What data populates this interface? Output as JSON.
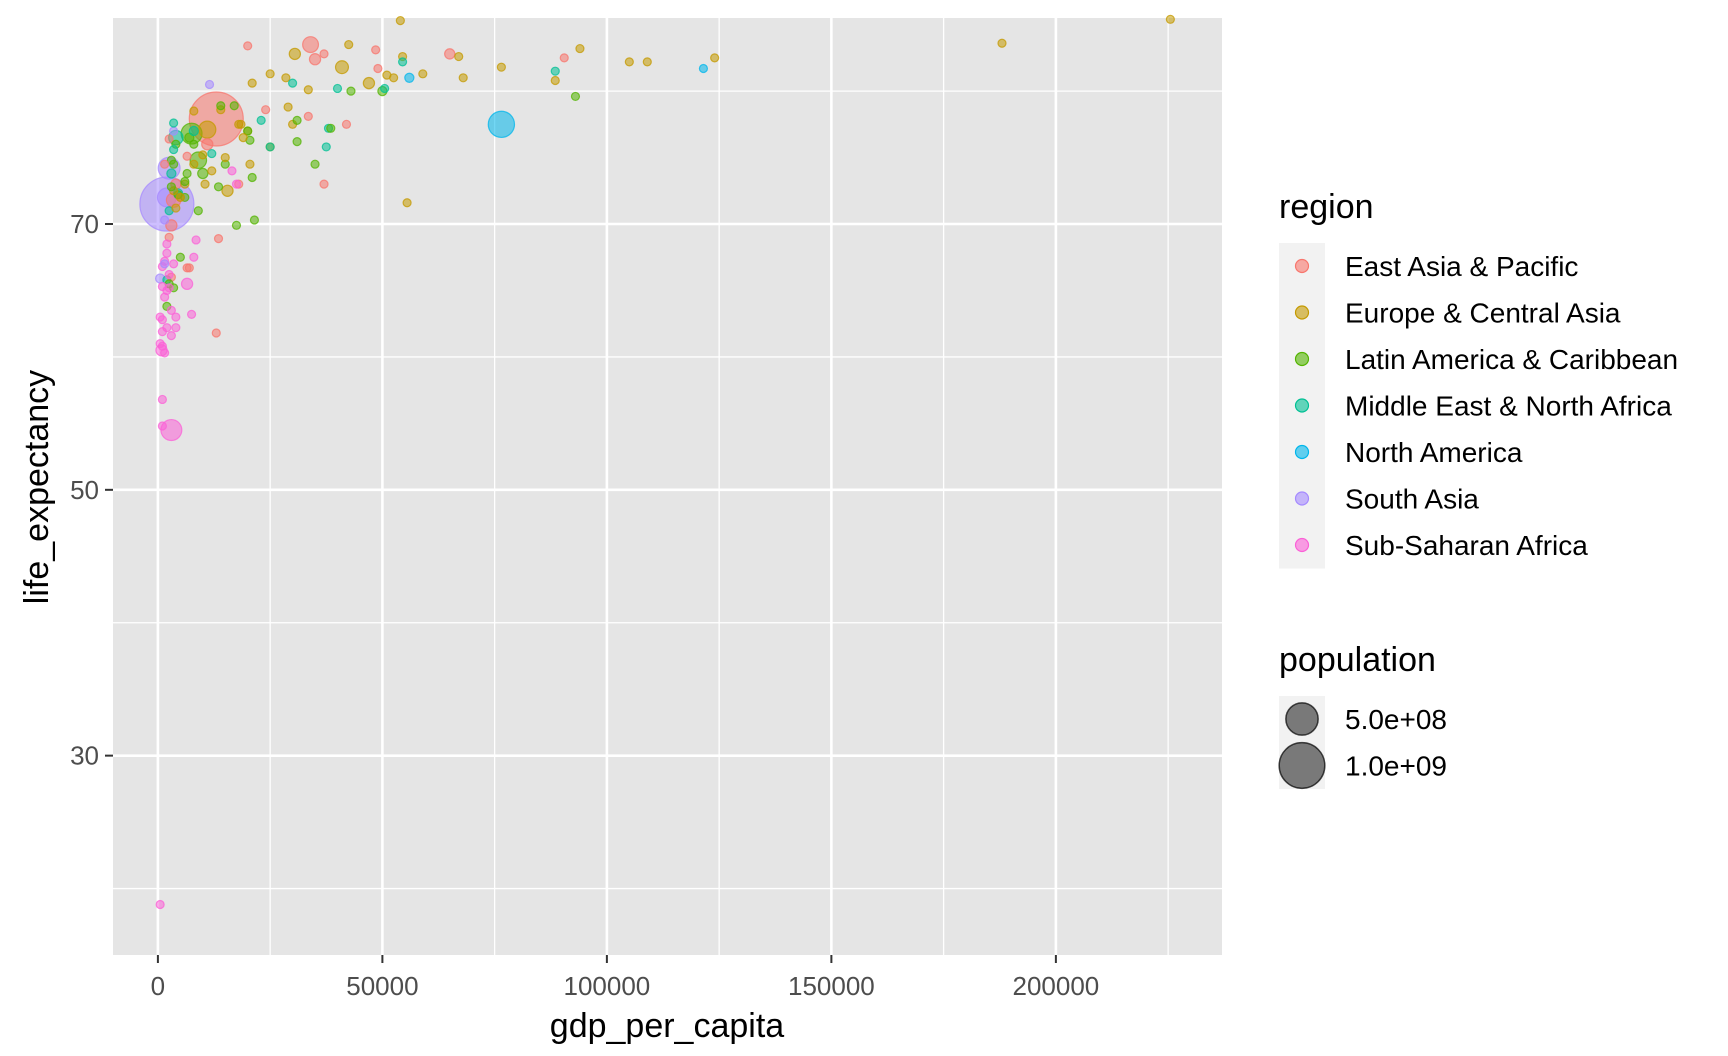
{
  "chart_data": {
    "type": "scatter",
    "xlabel": "gdp_per_capita",
    "ylabel": "life_expectancy",
    "xlim": [
      -10000,
      237000
    ],
    "ylim": [
      15,
      85.5
    ],
    "xticks": [
      0,
      50000,
      100000,
      150000,
      200000
    ],
    "xtick_labels": [
      "0",
      "50000",
      "100000",
      "150000",
      "200000"
    ],
    "yticks": [
      30,
      50,
      70
    ],
    "ytick_labels": [
      "30",
      "50",
      "70"
    ],
    "grid": true,
    "background": "#e5e5e5",
    "legend_position": "right",
    "color_legend": {
      "title": "region",
      "entries": [
        {
          "label": "East Asia & Pacific",
          "color": "#F8766D"
        },
        {
          "label": "Europe & Central Asia",
          "color": "#C49A00"
        },
        {
          "label": "Latin America & Caribbean",
          "color": "#53B400"
        },
        {
          "label": "Middle East & North Africa",
          "color": "#00C094"
        },
        {
          "label": "North America",
          "color": "#00B6EB"
        },
        {
          "label": "South Asia",
          "color": "#A58AFF"
        },
        {
          "label": "Sub-Saharan Africa",
          "color": "#FB61D7"
        }
      ]
    },
    "size_legend": {
      "title": "population",
      "entries": [
        {
          "label": "5.0e+08",
          "value": 500000000
        },
        {
          "label": "1.0e+09",
          "value": 1000000000
        }
      ]
    },
    "series": [
      {
        "name": "East Asia & Pacific",
        "points": [
          [
            20000,
            83.4,
            25000000
          ],
          [
            34000,
            83.5,
            120000000
          ],
          [
            35000,
            82.4,
            60000000
          ],
          [
            37000,
            82.8,
            30000000
          ],
          [
            48500,
            83.1,
            20000000
          ],
          [
            49000,
            81.7,
            10000000
          ],
          [
            65000,
            82.8,
            50000000
          ],
          [
            90500,
            82.5,
            20000000
          ],
          [
            24000,
            78.6,
            10000000
          ],
          [
            33500,
            78.1,
            10000000
          ],
          [
            42000,
            77.5,
            10000000
          ],
          [
            13000,
            77.9,
            1400000000
          ],
          [
            11000,
            76.0,
            60000000
          ],
          [
            6500,
            75.1,
            30000000
          ],
          [
            3500,
            71.8,
            100000000
          ],
          [
            4000,
            73.0,
            50000000
          ],
          [
            5000,
            72.0,
            30000000
          ],
          [
            3000,
            69.9,
            60000000
          ],
          [
            2500,
            69.0,
            10000000
          ],
          [
            6500,
            66.7,
            10000000
          ],
          [
            13500,
            68.9,
            5000000
          ],
          [
            37000,
            73.0,
            5000000
          ],
          [
            18000,
            73.0,
            5000000
          ],
          [
            13000,
            61.8,
            5000000
          ],
          [
            3000,
            66.0,
            10000000
          ],
          [
            7000,
            66.7,
            5000000
          ],
          [
            1500,
            74.5,
            5000000
          ],
          [
            2500,
            76.4,
            10000000
          ]
        ]
      },
      {
        "name": "Europe & Central Asia",
        "points": [
          [
            54000,
            85.3,
            5000000
          ],
          [
            225500,
            85.4,
            5000000
          ],
          [
            188000,
            83.6,
            5000000
          ],
          [
            42500,
            83.5,
            5000000
          ],
          [
            30500,
            82.8,
            60000000
          ],
          [
            54500,
            82.6,
            10000000
          ],
          [
            67000,
            82.6,
            5000000
          ],
          [
            94000,
            83.2,
            10000000
          ],
          [
            105000,
            82.2,
            10000000
          ],
          [
            109000,
            82.2,
            10000000
          ],
          [
            124000,
            82.5,
            5000000
          ],
          [
            25000,
            81.3,
            20000000
          ],
          [
            28500,
            81.0,
            10000000
          ],
          [
            41000,
            81.8,
            80000000
          ],
          [
            47000,
            80.6,
            60000000
          ],
          [
            51000,
            81.2,
            10000000
          ],
          [
            52500,
            81.0,
            10000000
          ],
          [
            59000,
            81.3,
            10000000
          ],
          [
            68000,
            81.0,
            10000000
          ],
          [
            76500,
            81.8,
            5000000
          ],
          [
            88500,
            80.8,
            5000000
          ],
          [
            33500,
            80.1,
            10000000
          ],
          [
            21000,
            80.6,
            10000000
          ],
          [
            29000,
            78.8,
            10000000
          ],
          [
            8000,
            78.5,
            10000000
          ],
          [
            30000,
            77.5,
            5000000
          ],
          [
            18000,
            77.5,
            10000000
          ],
          [
            20000,
            77.0,
            10000000
          ],
          [
            19000,
            76.5,
            5000000
          ],
          [
            25000,
            75.8,
            5000000
          ],
          [
            20500,
            74.5,
            5000000
          ],
          [
            10000,
            75.2,
            5000000
          ],
          [
            15000,
            75.0,
            5000000
          ],
          [
            8000,
            74.5,
            5000000
          ],
          [
            12000,
            74.0,
            5000000
          ],
          [
            15500,
            72.5,
            60000000
          ],
          [
            10500,
            73.0,
            5000000
          ],
          [
            6000,
            73.0,
            10000000
          ],
          [
            55500,
            71.6,
            5000000
          ],
          [
            4000,
            71.2,
            10000000
          ],
          [
            5000,
            72.0,
            5000000
          ],
          [
            3500,
            72.5,
            5000000
          ],
          [
            11000,
            77.1,
            140000000
          ],
          [
            14000,
            78.6,
            10000000
          ],
          [
            18500,
            77.5,
            10000000
          ]
        ]
      },
      {
        "name": "Latin America & Caribbean",
        "points": [
          [
            14000,
            78.9,
            5000000
          ],
          [
            17000,
            78.9,
            5000000
          ],
          [
            20000,
            77.0,
            10000000
          ],
          [
            20500,
            76.3,
            10000000
          ],
          [
            31000,
            77.8,
            5000000
          ],
          [
            38500,
            77.2,
            10000000
          ],
          [
            43000,
            80.0,
            5000000
          ],
          [
            50000,
            80.0,
            40000000
          ],
          [
            93000,
            79.6,
            5000000
          ],
          [
            35000,
            74.5,
            5000000
          ],
          [
            31000,
            76.2,
            5000000
          ],
          [
            21000,
            73.5,
            10000000
          ],
          [
            13500,
            72.8,
            10000000
          ],
          [
            15000,
            74.5,
            10000000
          ],
          [
            9000,
            74.8,
            130000000
          ],
          [
            7000,
            76.5,
            40000000
          ],
          [
            8000,
            76.0,
            30000000
          ],
          [
            10000,
            73.8,
            50000000
          ],
          [
            6000,
            73.2,
            10000000
          ],
          [
            4500,
            72.2,
            10000000
          ],
          [
            9000,
            71.0,
            10000000
          ],
          [
            6000,
            72.0,
            20000000
          ],
          [
            3000,
            72.8,
            5000000
          ],
          [
            17500,
            69.9,
            10000000
          ],
          [
            21500,
            70.3,
            10000000
          ],
          [
            3500,
            74.5,
            20000000
          ],
          [
            5000,
            67.5,
            10000000
          ],
          [
            2500,
            65.5,
            10000000
          ],
          [
            2000,
            63.8,
            5000000
          ],
          [
            3500,
            65.2,
            10000000
          ],
          [
            4000,
            76.0,
            10000000
          ],
          [
            6500,
            73.8,
            10000000
          ],
          [
            7500,
            76.8,
            210000000
          ],
          [
            3000,
            74.8,
            10000000
          ]
        ]
      },
      {
        "name": "Middle East & North Africa",
        "points": [
          [
            54500,
            82.2,
            10000000
          ],
          [
            88500,
            81.5,
            5000000
          ],
          [
            30000,
            80.6,
            5000000
          ],
          [
            40000,
            80.2,
            5000000
          ],
          [
            50500,
            80.2,
            10000000
          ],
          [
            23000,
            77.8,
            5000000
          ],
          [
            38000,
            77.2,
            20000000
          ],
          [
            37500,
            75.8,
            5000000
          ],
          [
            25000,
            75.8,
            5000000
          ],
          [
            3500,
            77.6,
            5000000
          ],
          [
            4000,
            76.5,
            100000000
          ],
          [
            3500,
            75.6,
            10000000
          ],
          [
            4500,
            72.3,
            40000000
          ],
          [
            3000,
            73.8,
            40000000
          ],
          [
            2500,
            71.0,
            30000000
          ],
          [
            2000,
            65.8,
            30000000
          ],
          [
            8000,
            77.0,
            40000000
          ],
          [
            12000,
            75.3,
            10000000
          ]
        ]
      },
      {
        "name": "North America",
        "points": [
          [
            76500,
            77.5,
            330000000
          ],
          [
            56000,
            81.0,
            40000000
          ],
          [
            121500,
            81.7,
            5000000
          ]
        ]
      },
      {
        "name": "South Asia",
        "points": [
          [
            11500,
            80.5,
            5000000
          ],
          [
            3500,
            77.0,
            20000000
          ],
          [
            2500,
            74.2,
            230000000
          ],
          [
            2000,
            71.5,
            1400000000
          ],
          [
            1500,
            70.3,
            30000000
          ],
          [
            2000,
            72.0,
            170000000
          ],
          [
            500,
            65.9,
            40000000
          ],
          [
            1500,
            67.0,
            10000000
          ]
        ]
      },
      {
        "name": "Sub-Saharan Africa",
        "points": [
          [
            16500,
            74.0,
            5000000
          ],
          [
            17500,
            73.0,
            5000000
          ],
          [
            8500,
            68.8,
            5000000
          ],
          [
            8000,
            67.5,
            5000000
          ],
          [
            6500,
            65.5,
            60000000
          ],
          [
            7500,
            63.2,
            5000000
          ],
          [
            4000,
            63.0,
            5000000
          ],
          [
            2000,
            67.8,
            30000000
          ],
          [
            1500,
            67.2,
            20000000
          ],
          [
            1000,
            66.8,
            30000000
          ],
          [
            2000,
            68.5,
            10000000
          ],
          [
            3500,
            67.0,
            10000000
          ],
          [
            1000,
            65.3,
            10000000
          ],
          [
            2000,
            65.0,
            30000000
          ],
          [
            2500,
            65.2,
            10000000
          ],
          [
            1500,
            64.5,
            10000000
          ],
          [
            500,
            63.0,
            10000000
          ],
          [
            1000,
            62.8,
            30000000
          ],
          [
            2000,
            62.2,
            30000000
          ],
          [
            1000,
            61.9,
            20000000
          ],
          [
            3000,
            61.6,
            10000000
          ],
          [
            500,
            61.0,
            20000000
          ],
          [
            1000,
            60.8,
            30000000
          ],
          [
            1500,
            60.3,
            20000000
          ],
          [
            800,
            60.5,
            60000000
          ],
          [
            1000,
            56.8,
            5000000
          ],
          [
            1000,
            54.8,
            10000000
          ],
          [
            3000,
            54.5,
            210000000
          ],
          [
            500,
            18.8,
            5000000
          ],
          [
            4000,
            62.2,
            5000000
          ],
          [
            3000,
            63.5,
            5000000
          ],
          [
            2500,
            66.2,
            5000000
          ]
        ]
      }
    ]
  }
}
